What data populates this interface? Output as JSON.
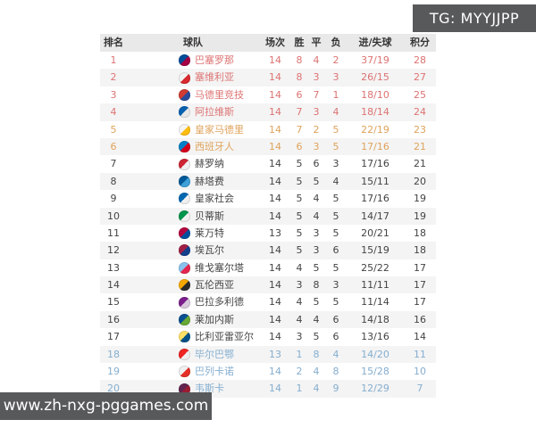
{
  "page": {
    "tg_badge": "TG: MYYJJPP",
    "watermark": "www.zh-nxg-pggames.com"
  },
  "colors": {
    "badge_bg": "#58595b",
    "header_bg": "#e9e9e9",
    "stripe_bg": "#f4f4f4",
    "zone_cl": "#dd7373",
    "zone_el": "#dfa35c",
    "zone_normal": "#444444",
    "zone_releg": "#85aecf"
  },
  "table": {
    "headers": {
      "rank": "排名",
      "team": "球队",
      "played": "场次",
      "win": "胜",
      "draw": "平",
      "loss": "负",
      "goals": "进/失球",
      "points": "积分"
    },
    "rows": [
      {
        "rank": "1",
        "team": "巴塞罗那",
        "played": "14",
        "win": "8",
        "draw": "4",
        "loss": "2",
        "goals": "37/19",
        "points": "28",
        "zone": "cl",
        "crest": [
          "#004d98",
          "#a50044"
        ]
      },
      {
        "rank": "2",
        "team": "塞维利亚",
        "played": "14",
        "win": "8",
        "draw": "3",
        "loss": "3",
        "goals": "26/15",
        "points": "27",
        "zone": "cl",
        "crest": [
          "#f2f2f2",
          "#d8292f"
        ]
      },
      {
        "rank": "3",
        "team": "马德里竞技",
        "played": "14",
        "win": "6",
        "draw": "7",
        "loss": "1",
        "goals": "18/10",
        "points": "25",
        "zone": "cl",
        "crest": [
          "#d03b33",
          "#2a4b9b"
        ]
      },
      {
        "rank": "4",
        "team": "阿拉维斯",
        "played": "14",
        "win": "7",
        "draw": "3",
        "loss": "4",
        "goals": "18/14",
        "points": "24",
        "zone": "cl",
        "crest": [
          "#0761af",
          "#e8e8e8"
        ]
      },
      {
        "rank": "5",
        "team": "皇家马德里",
        "played": "14",
        "win": "7",
        "draw": "2",
        "loss": "5",
        "goals": "22/19",
        "points": "23",
        "zone": "el",
        "crest": [
          "#f5f5f5",
          "#febe10"
        ]
      },
      {
        "rank": "6",
        "team": "西班牙人",
        "played": "14",
        "win": "6",
        "draw": "3",
        "loss": "5",
        "goals": "17/16",
        "points": "21",
        "zone": "el",
        "crest": [
          "#007fc8",
          "#d6001c"
        ]
      },
      {
        "rank": "7",
        "team": "赫罗纳",
        "played": "14",
        "win": "5",
        "draw": "6",
        "loss": "3",
        "goals": "17/16",
        "points": "21",
        "zone": "normal",
        "crest": [
          "#cd2534",
          "#f0f0f0"
        ]
      },
      {
        "rank": "8",
        "team": "赫塔费",
        "played": "14",
        "win": "5",
        "draw": "5",
        "loss": "4",
        "goals": "15/11",
        "points": "20",
        "zone": "normal",
        "crest": [
          "#005999",
          "#3fa0d8"
        ]
      },
      {
        "rank": "9",
        "team": "皇家社会",
        "played": "14",
        "win": "5",
        "draw": "4",
        "loss": "5",
        "goals": "17/16",
        "points": "19",
        "zone": "normal",
        "crest": [
          "#0067b1",
          "#f0f0f0"
        ]
      },
      {
        "rank": "10",
        "team": "贝蒂斯",
        "played": "14",
        "win": "5",
        "draw": "4",
        "loss": "5",
        "goals": "14/17",
        "points": "19",
        "zone": "normal",
        "crest": [
          "#00954c",
          "#f0f0f0"
        ]
      },
      {
        "rank": "11",
        "team": "莱万特",
        "played": "13",
        "win": "5",
        "draw": "3",
        "loss": "5",
        "goals": "20/21",
        "points": "18",
        "zone": "normal",
        "crest": [
          "#b4053f",
          "#004f9e"
        ]
      },
      {
        "rank": "12",
        "team": "埃瓦尔",
        "played": "14",
        "win": "5",
        "draw": "3",
        "loss": "6",
        "goals": "15/19",
        "points": "18",
        "zone": "normal",
        "crest": [
          "#a01e45",
          "#123f8c"
        ]
      },
      {
        "rank": "13",
        "team": "维戈塞尔塔",
        "played": "14",
        "win": "4",
        "draw": "5",
        "loss": "5",
        "goals": "25/22",
        "points": "17",
        "zone": "normal",
        "crest": [
          "#8ac3ee",
          "#e5254e"
        ]
      },
      {
        "rank": "14",
        "team": "瓦伦西亚",
        "played": "14",
        "win": "3",
        "draw": "8",
        "loss": "3",
        "goals": "11/11",
        "points": "17",
        "zone": "normal",
        "crest": [
          "#f7a800",
          "#2b2b2b"
        ]
      },
      {
        "rank": "15",
        "team": "巴拉多利德",
        "played": "14",
        "win": "4",
        "draw": "5",
        "loss": "5",
        "goals": "11/14",
        "points": "17",
        "zone": "normal",
        "crest": [
          "#7a1e8b",
          "#d8c9dd"
        ]
      },
      {
        "rank": "16",
        "team": "莱加内斯",
        "played": "14",
        "win": "4",
        "draw": "4",
        "loss": "6",
        "goals": "14/18",
        "points": "16",
        "zone": "normal",
        "crest": [
          "#0a4f8f",
          "#69a935"
        ]
      },
      {
        "rank": "17",
        "team": "比利亚雷亚尔",
        "played": "14",
        "win": "3",
        "draw": "5",
        "loss": "6",
        "goals": "13/16",
        "points": "14",
        "zone": "normal",
        "crest": [
          "#ffe066",
          "#005187"
        ]
      },
      {
        "rank": "18",
        "team": "毕尔巴鄂",
        "played": "13",
        "win": "1",
        "draw": "8",
        "loss": "4",
        "goals": "14/20",
        "points": "11",
        "zone": "releg",
        "crest": [
          "#ee2523",
          "#f0f0f0"
        ]
      },
      {
        "rank": "19",
        "team": "巴列卡诺",
        "played": "14",
        "win": "2",
        "draw": "4",
        "loss": "8",
        "goals": "15/28",
        "points": "10",
        "zone": "releg",
        "crest": [
          "#f0f0f0",
          "#e53027"
        ]
      },
      {
        "rank": "20",
        "team": "韦斯卡",
        "played": "14",
        "win": "1",
        "draw": "4",
        "loss": "9",
        "goals": "12/29",
        "points": "7",
        "zone": "releg",
        "crest": [
          "#62254f",
          "#9c1c31"
        ]
      }
    ]
  }
}
